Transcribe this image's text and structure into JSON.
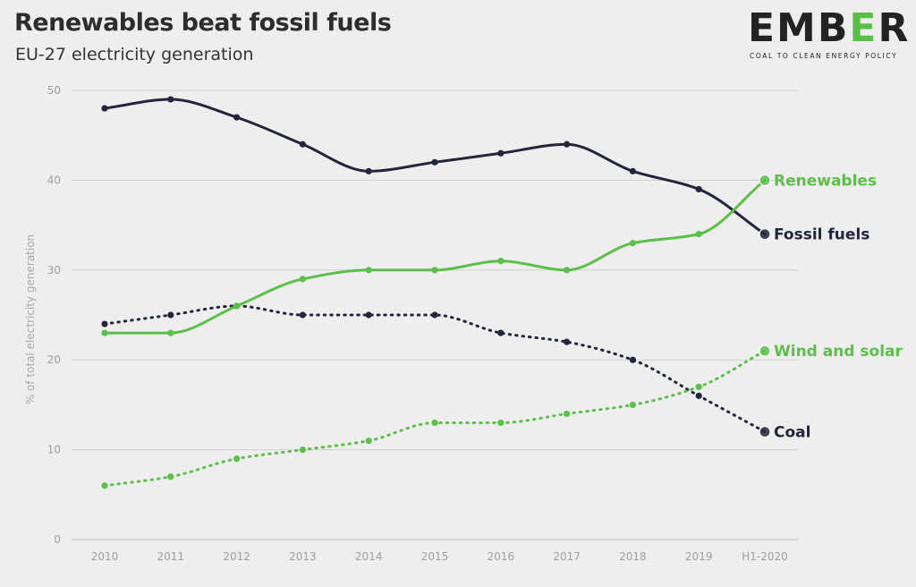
{
  "header": {
    "title": "Renewables beat fossil fuels",
    "subtitle": "EU-27 electricity generation"
  },
  "logo": {
    "word_a": "EMB",
    "word_b": "E",
    "word_c": "R",
    "tagline": "COAL TO CLEAN ENERGY POLICY"
  },
  "colors": {
    "background": "#eeeeee",
    "gridline": "#d0d0d0",
    "renewables": "#5bbf4a",
    "fossil": "#25243d"
  },
  "chart_data": {
    "type": "line",
    "title": "Renewables beat fossil fuels",
    "subtitle": "EU-27 electricity generation",
    "xlabel": "",
    "ylabel": "% of total electricity generation",
    "categories": [
      "2010",
      "2011",
      "2012",
      "2013",
      "2014",
      "2015",
      "2016",
      "2017",
      "2018",
      "2019",
      "H1-2020"
    ],
    "ylim": [
      0,
      50
    ],
    "yticks": [
      0,
      10,
      20,
      30,
      40,
      50
    ],
    "grid": "horizontal",
    "series": [
      {
        "name": "Fossil fuels",
        "color": "#25243d",
        "dashed": false,
        "values": [
          48,
          49,
          47,
          44,
          41,
          42,
          43,
          44,
          41,
          39,
          34
        ]
      },
      {
        "name": "Renewables",
        "color": "#5bbf4a",
        "dashed": false,
        "values": [
          23,
          23,
          26,
          29,
          30,
          30,
          31,
          30,
          33,
          34,
          40
        ]
      },
      {
        "name": "Coal",
        "color": "#25243d",
        "dashed": true,
        "values": [
          24,
          25,
          26,
          25,
          25,
          25,
          23,
          22,
          20,
          16,
          12
        ]
      },
      {
        "name": "Wind and solar",
        "color": "#5bbf4a",
        "dashed": true,
        "values": [
          6,
          7,
          9,
          10,
          11,
          13,
          13,
          14,
          15,
          17,
          21
        ]
      }
    ]
  }
}
